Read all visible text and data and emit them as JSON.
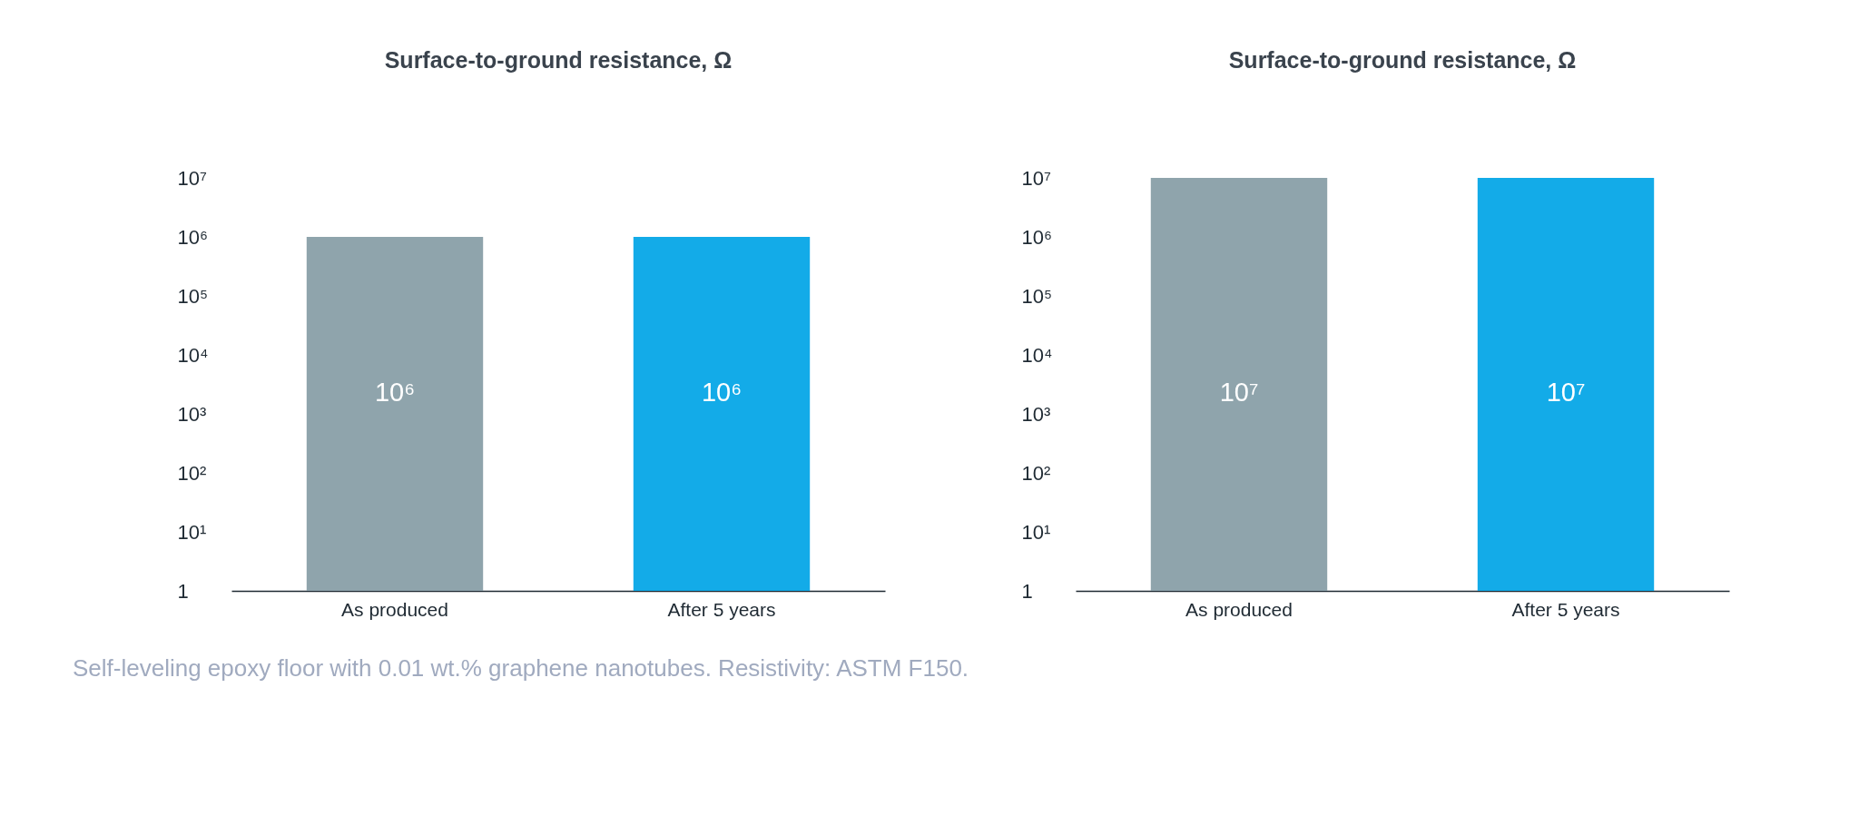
{
  "chart_data": [
    {
      "type": "bar",
      "title": "Surface-to-ground resistance, Ω",
      "categories": [
        "As produced",
        "After 5 years"
      ],
      "values": [
        1000000,
        1000000
      ],
      "colors": [
        "#8fa4ac",
        "#13abe8"
      ],
      "value_labels": [
        "10⁶",
        "10⁶"
      ],
      "log": true,
      "ylim": [
        1,
        10000000
      ],
      "yticks": [
        1,
        {
          "value": 10,
          "label": "10¹"
        },
        {
          "value": 100,
          "label": "10²"
        },
        {
          "value": 1000,
          "label": "10³"
        },
        {
          "value": 10000,
          "label": "10⁴"
        },
        {
          "value": 100000,
          "label": "10⁵"
        },
        {
          "value": 1000000,
          "label": "10⁶"
        },
        {
          "value": 10000000,
          "label": "10⁷"
        }
      ],
      "grid": false,
      "legend": false,
      "annotations": [
        "Self-leveling epoxy floor with 0.01 wt.% graphene nanotubes. Resistivity: ASTM F150."
      ]
    },
    {
      "type": "bar",
      "title": "Surface-to-ground resistance, Ω",
      "categories": [
        "As produced",
        "After 5 years"
      ],
      "values": [
        10000000,
        10000000
      ],
      "colors": [
        "#8fa4ac",
        "#13abe8"
      ],
      "value_labels": [
        "10⁷",
        "10⁷"
      ],
      "log": true,
      "ylim": [
        1,
        10000000
      ],
      "yticks": [
        1,
        {
          "value": 10,
          "label": "10¹"
        },
        {
          "value": 100,
          "label": "10²"
        },
        {
          "value": 1000,
          "label": "10³"
        },
        {
          "value": 10000,
          "label": "10⁴"
        },
        {
          "value": 100000,
          "label": "10⁵"
        },
        {
          "value": 1000000,
          "label": "10⁶"
        },
        {
          "value": 10000000,
          "label": "10⁷"
        }
      ],
      "grid": false,
      "legend": false
    }
  ]
}
